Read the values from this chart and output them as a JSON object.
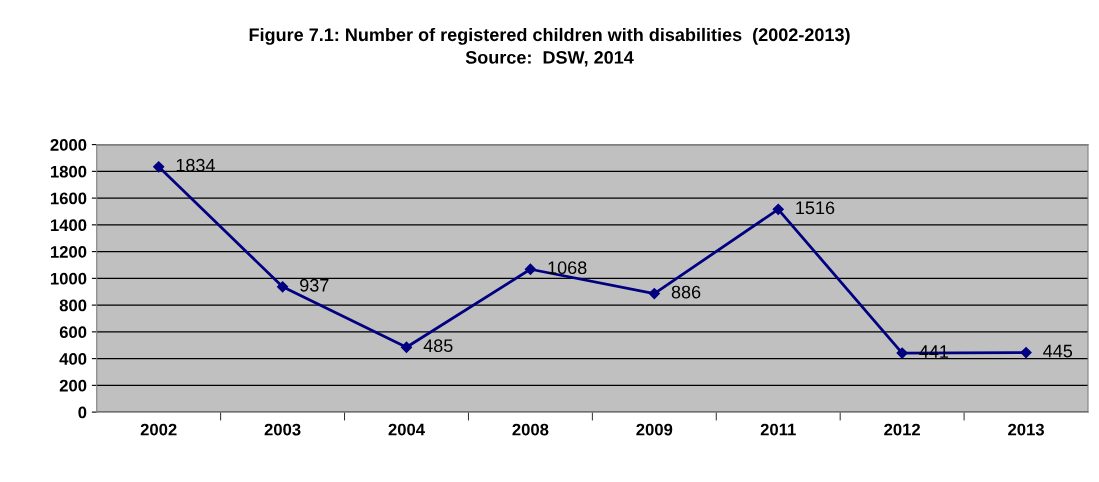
{
  "chart_data": {
    "type": "line",
    "title": "Figure 7.1: Number of registered children with disabilities  (2002-2013)",
    "subtitle": "Source:  DSW, 2014",
    "categories": [
      "2002",
      "2003",
      "2004",
      "2008",
      "2009",
      "2011",
      "2012",
      "2013"
    ],
    "series": [
      {
        "color": "#000080",
        "values": [
          1834,
          937,
          485,
          1068,
          886,
          1516,
          441,
          445
        ]
      }
    ],
    "ylim": [
      0,
      2000
    ],
    "yticks": [
      0,
      200,
      400,
      600,
      800,
      1000,
      1200,
      1400,
      1600,
      1800,
      2000
    ],
    "grid": "y",
    "marker": "diamond",
    "line_style": "solid",
    "data_labels": true,
    "legend": false
  }
}
